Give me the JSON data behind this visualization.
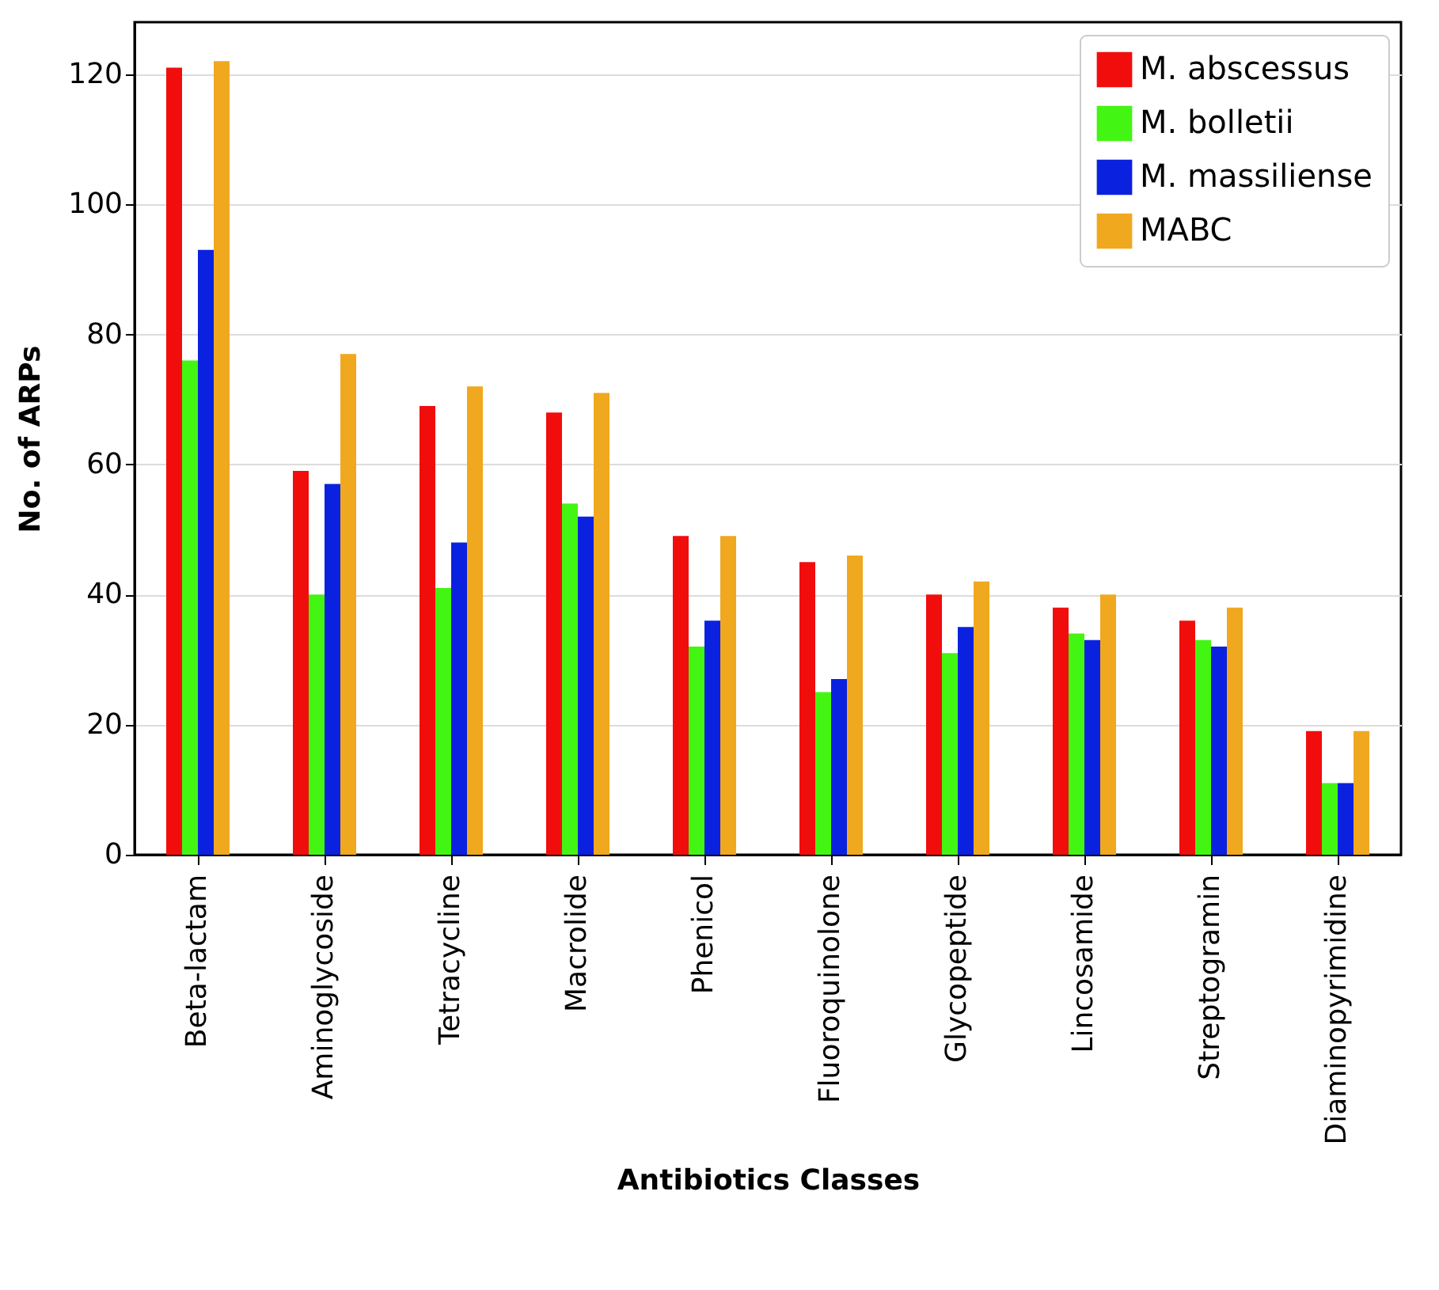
{
  "chart_data": {
    "type": "bar",
    "xlabel": "Antibiotics Classes",
    "ylabel": "No. of ARPs",
    "categories": [
      "Beta-lactam",
      "Aminoglycoside",
      "Tetracycline",
      "Macrolide",
      "Phenicol",
      "Fluoroquinolone",
      "Glycopeptide",
      "Lincosamide",
      "Streptogramin",
      "Diaminopyrimidine"
    ],
    "series": [
      {
        "name": "M. abscessus",
        "color": "#f20d0d",
        "values": [
          121,
          59,
          69,
          68,
          49,
          45,
          40,
          38,
          36,
          19
        ]
      },
      {
        "name": "M. bolletii",
        "color": "#43f512",
        "values": [
          76,
          40,
          41,
          54,
          32,
          25,
          31,
          34,
          33,
          11
        ]
      },
      {
        "name": "M. massiliense",
        "color": "#0a22df",
        "values": [
          93,
          57,
          48,
          52,
          36,
          27,
          35,
          33,
          32,
          11
        ]
      },
      {
        "name": "MABC",
        "color": "#f0a81e",
        "values": [
          122,
          77,
          72,
          71,
          49,
          46,
          42,
          40,
          38,
          19
        ]
      }
    ],
    "ylim": [
      0,
      128
    ],
    "yticks": [
      0,
      20,
      40,
      60,
      80,
      100,
      120
    ],
    "grid": "y",
    "legend": "top right"
  }
}
